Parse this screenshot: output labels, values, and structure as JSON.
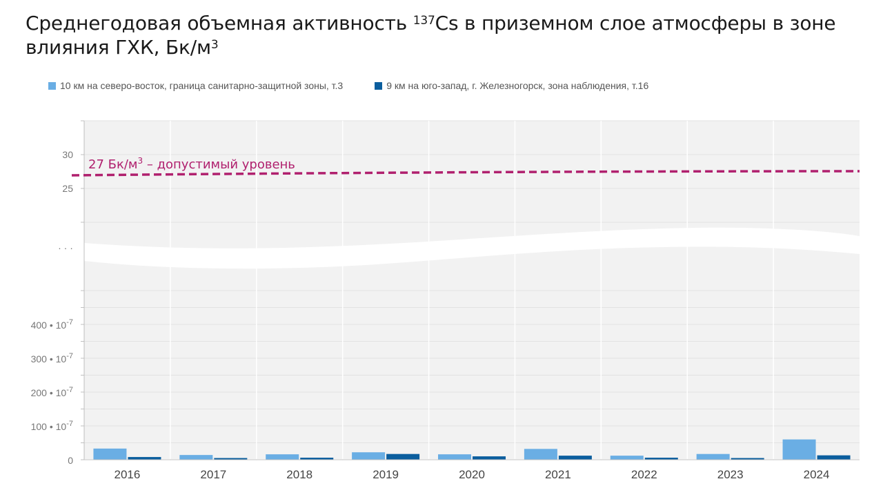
{
  "title": {
    "pre": "Среднегодовая объемная активность ",
    "sup1": "137",
    "mid": "Cs в приземном слое атмосферы в зоне влияния ГХК, Бк/м",
    "sup2": "3"
  },
  "legend": [
    {
      "label": "10 км на северо-восток, граница санитарно-защитной зоны, т.3",
      "color": "#6aaee4"
    },
    {
      "label": "9 км на юго-запад, г. Железногорск, зона наблюдения, т.16",
      "color": "#0b5e9e"
    }
  ],
  "limit": {
    "text_pre": "27 Бк/м",
    "text_sup": "3",
    "text_post": " – допустимый уровень",
    "value": 27,
    "color": "#b0206e"
  },
  "upper_ticks": [
    "30",
    "25"
  ],
  "lower_ticks": [
    {
      "base": "400 • 10",
      "exp": "-7"
    },
    {
      "base": "300 • 10",
      "exp": "-7"
    },
    {
      "base": "200 • 10",
      "exp": "-7"
    },
    {
      "base": "100 • 10",
      "exp": "-7"
    },
    {
      "base": "0",
      "exp": ""
    }
  ],
  "break_marker": "· · ·",
  "chart_data": {
    "type": "bar",
    "categories": [
      "2016",
      "2017",
      "2018",
      "2019",
      "2020",
      "2021",
      "2022",
      "2023",
      "2024"
    ],
    "series": [
      {
        "name": "10 км на северо-восток, граница санитарно-защитной зоны, т.3",
        "values": [
          33,
          14,
          16,
          22,
          16,
          32,
          12,
          17,
          60
        ],
        "color": "#6aaee4"
      },
      {
        "name": "9 км на юго-запад, г. Железногорск, зона наблюдения, т.16",
        "values": [
          8,
          5,
          6,
          17,
          10,
          12,
          6,
          5,
          13
        ],
        "color": "#0b5e9e"
      }
    ],
    "unit": "10^-7 Бк/м3",
    "lower_axis": {
      "ylim": [
        0,
        500
      ],
      "ticks": [
        0,
        100,
        200,
        300,
        400
      ]
    },
    "upper_axis": {
      "ylim": [
        20,
        35
      ],
      "ticks": [
        25,
        30
      ]
    },
    "reference_line": 27,
    "grid": true
  }
}
